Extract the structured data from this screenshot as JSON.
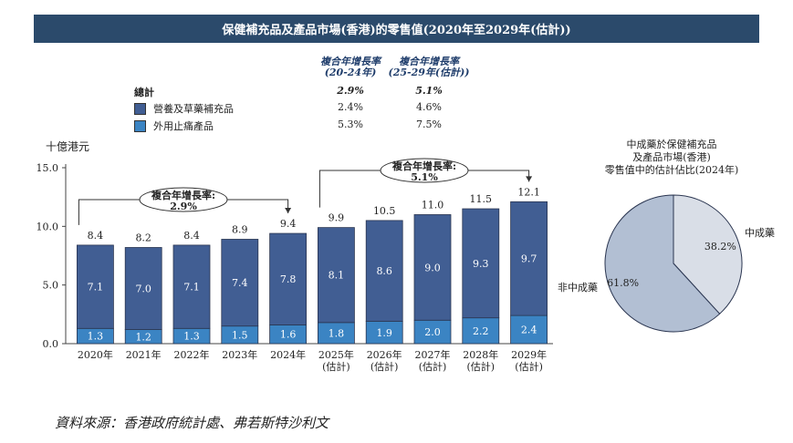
{
  "title": "保健補充品及產品市場(香港)的零售值(2020年至2029年(估計))",
  "cagr_table": {
    "header_1": [
      "複合年增長率",
      "(20-24年)"
    ],
    "header_2": [
      "複合年增長率",
      "(25-29年(估計))"
    ],
    "rows": [
      {
        "label": "總計",
        "v1": "2.9%",
        "v2": "5.1%"
      },
      {
        "label": "營養及草藥補充品",
        "v1": "2.4%",
        "v2": "4.6%",
        "color": "#415e93"
      },
      {
        "label": "外用止痛產品",
        "v1": "5.3%",
        "v2": "7.5%",
        "color": "#3b84c3"
      }
    ]
  },
  "pie_title": [
    "中成藥於保健補充品",
    "及產品市場(香港)",
    "零售值中的估計佔比(2024年)"
  ],
  "source": "資料來源：香港政府統計處、弗若斯特沙利文",
  "chart_data": [
    {
      "type": "bar",
      "stacked": true,
      "ylabel": "十億港元",
      "ylim": [
        0,
        15
      ],
      "yticks": [
        "0.0",
        "5.0",
        "10.0",
        "15.0"
      ],
      "categories": [
        [
          "2020年"
        ],
        [
          "2021年"
        ],
        [
          "2022年"
        ],
        [
          "2023年"
        ],
        [
          "2024年"
        ],
        [
          "2025年",
          "(估計)"
        ],
        [
          "2026年",
          "(估計)"
        ],
        [
          "2027年",
          "(估計)"
        ],
        [
          "2028年",
          "(估計)"
        ],
        [
          "2029年",
          "(估計)"
        ]
      ],
      "series": [
        {
          "name": "外用止痛產品",
          "color": "#3b84c3",
          "values": [
            1.3,
            1.2,
            1.3,
            1.5,
            1.6,
            1.8,
            1.9,
            2.0,
            2.2,
            2.4
          ],
          "labels": [
            "1.3",
            "1.2",
            "1.3",
            "1.5",
            "1.6",
            "1.8",
            "1.9",
            "2.0",
            "2.2",
            "2.4"
          ]
        },
        {
          "name": "營養及草藥補充品",
          "color": "#415e93",
          "values": [
            7.1,
            7.0,
            7.1,
            7.4,
            7.8,
            8.1,
            8.6,
            9.0,
            9.3,
            9.7
          ],
          "labels": [
            "7.1",
            "7.0",
            "7.1",
            "7.4",
            "7.8",
            "8.1",
            "8.6",
            "9.0",
            "9.3",
            "9.7"
          ]
        }
      ],
      "totals": [
        "8.4",
        "8.2",
        "8.4",
        "8.9",
        "9.4",
        "9.9",
        "10.5",
        "11.0",
        "11.5",
        "12.1"
      ],
      "annotations": [
        {
          "text": [
            "複合年增長率:",
            "2.9%"
          ],
          "from": 0,
          "to": 4
        },
        {
          "text": [
            "複合年增長率:",
            "5.1%"
          ],
          "from": 5,
          "to": 9
        }
      ]
    },
    {
      "type": "pie",
      "slices": [
        {
          "label": "中成藥",
          "value": 38.2,
          "display": "38.2%",
          "color": "#d9dee7"
        },
        {
          "label": "非中成藥",
          "value": 61.8,
          "display": "61.8%",
          "color": "#b2bfd3"
        }
      ]
    }
  ]
}
